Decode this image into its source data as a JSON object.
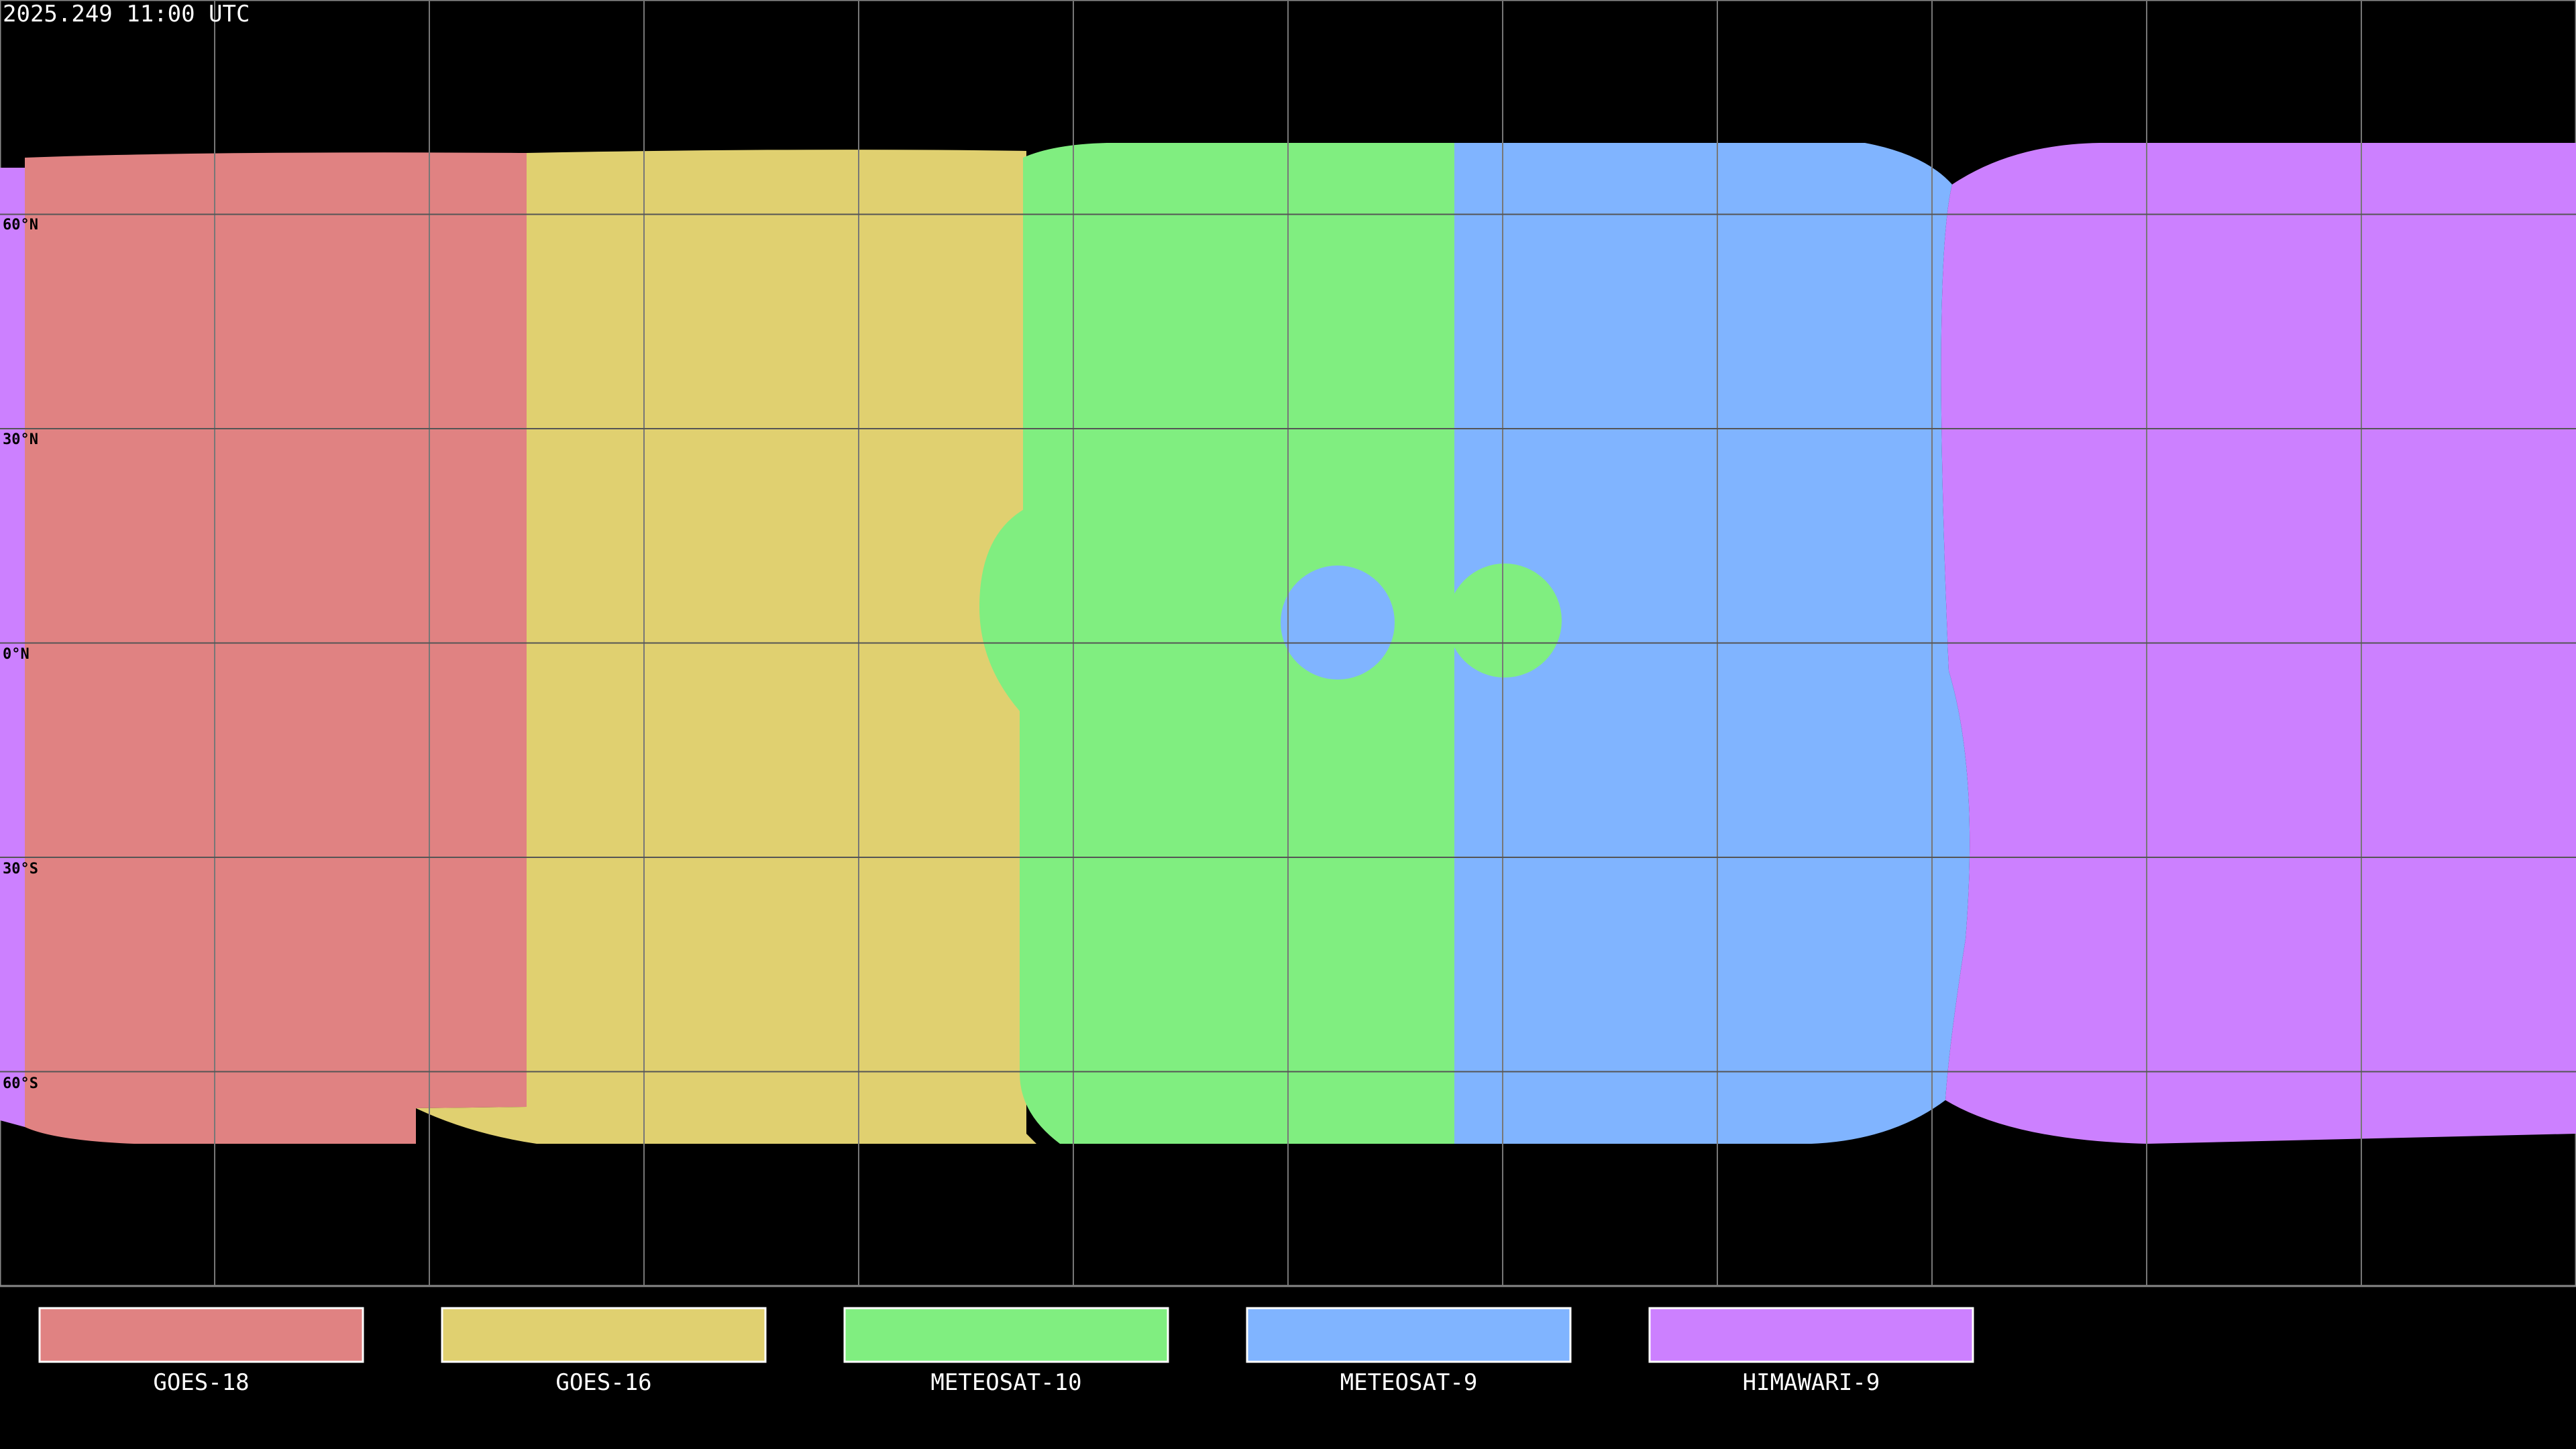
{
  "title": "2025.249 11:00 UTC",
  "map": {
    "projection": "equirectangular",
    "center_longitude": 0,
    "graticule_spacing_deg": 30,
    "lat_labels": [
      "60°N",
      "30°N",
      "0°N",
      "30°S",
      "60°S"
    ],
    "coastlines": "white over black, black over coverage colors"
  },
  "legend": [
    {
      "label": "GOES-18",
      "color": "#e08282"
    },
    {
      "label": "GOES-16",
      "color": "#e0d070"
    },
    {
      "label": "METEOSAT-10",
      "color": "#80ee80"
    },
    {
      "label": "METEOSAT-9",
      "color": "#80b4ff"
    },
    {
      "label": "HIMAWARI-9",
      "color": "#cc80ff"
    }
  ]
}
